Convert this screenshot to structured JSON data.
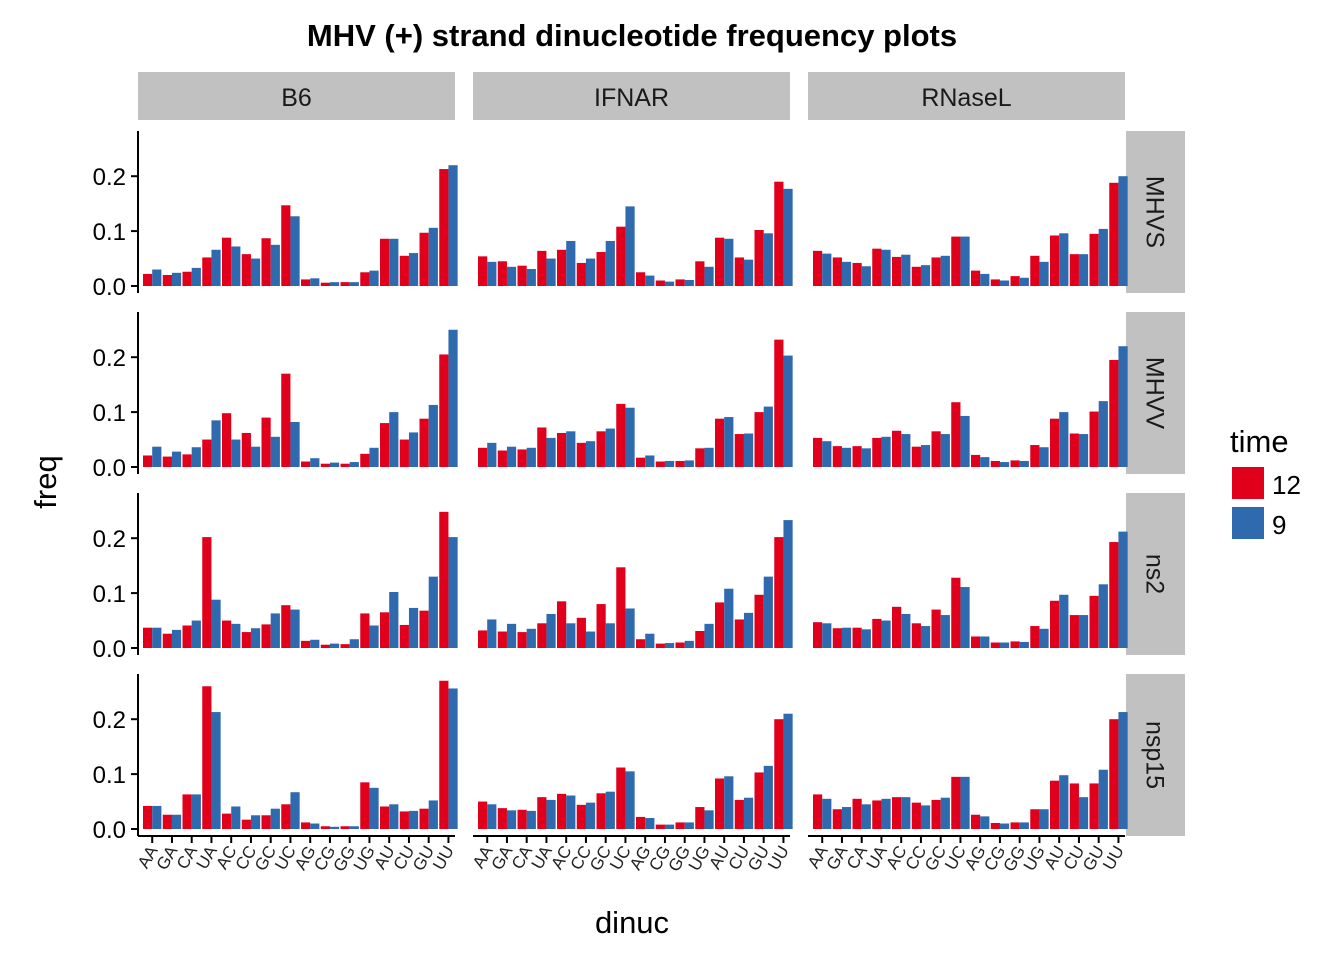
{
  "chart_data": {
    "type": "bar",
    "title": "MHV (+) strand dinucleotide frequency plots",
    "xlabel": "dinuc",
    "ylabel": "freq",
    "ylim": [
      0,
      0.285
    ],
    "yticks": [
      "0.0",
      "0.1",
      "0.2"
    ],
    "ytick_values": [
      0,
      0.1,
      0.2
    ],
    "grid": false,
    "legend_placement": "right",
    "legend": {
      "title": "time",
      "entries": [
        {
          "label": "12",
          "color": "#E0001B"
        },
        {
          "label": "9",
          "color": "#2F6AAE"
        }
      ]
    },
    "column_facets": [
      "B6",
      "IFNAR",
      "RNaseL"
    ],
    "row_facets": [
      "MHVS",
      "MHVV",
      "ns2",
      "nsp15"
    ],
    "categories": [
      "AA",
      "GA",
      "CA",
      "UA",
      "AC",
      "CC",
      "GC",
      "UC",
      "AG",
      "CG",
      "GG",
      "UG",
      "AU",
      "CU",
      "GU",
      "UU"
    ],
    "series_names": [
      "12",
      "9"
    ],
    "panels": [
      {
        "col": "B6",
        "row": "MHVS",
        "series": [
          {
            "name": "12",
            "values": [
              0.022,
              0.02,
              0.026,
              0.052,
              0.088,
              0.058,
              0.087,
              0.147,
              0.012,
              0.006,
              0.007,
              0.025,
              0.086,
              0.055,
              0.097,
              0.213
            ]
          },
          {
            "name": "9",
            "values": [
              0.03,
              0.024,
              0.033,
              0.066,
              0.072,
              0.05,
              0.075,
              0.127,
              0.014,
              0.007,
              0.007,
              0.028,
              0.086,
              0.06,
              0.106,
              0.22
            ]
          }
        ]
      },
      {
        "col": "IFNAR",
        "row": "MHVS",
        "series": [
          {
            "name": "12",
            "values": [
              0.054,
              0.045,
              0.037,
              0.064,
              0.066,
              0.042,
              0.062,
              0.108,
              0.025,
              0.01,
              0.012,
              0.045,
              0.088,
              0.052,
              0.102,
              0.19
            ]
          },
          {
            "name": "9",
            "values": [
              0.044,
              0.035,
              0.031,
              0.05,
              0.082,
              0.05,
              0.082,
              0.145,
              0.019,
              0.008,
              0.011,
              0.035,
              0.086,
              0.048,
              0.096,
              0.177
            ]
          }
        ]
      },
      {
        "col": "RNaseL",
        "row": "MHVS",
        "series": [
          {
            "name": "12",
            "values": [
              0.064,
              0.052,
              0.042,
              0.068,
              0.053,
              0.035,
              0.052,
              0.09,
              0.028,
              0.012,
              0.018,
              0.055,
              0.092,
              0.058,
              0.095,
              0.188
            ]
          },
          {
            "name": "9",
            "values": [
              0.059,
              0.044,
              0.036,
              0.066,
              0.057,
              0.038,
              0.055,
              0.09,
              0.022,
              0.01,
              0.015,
              0.044,
              0.096,
              0.058,
              0.104,
              0.2
            ]
          }
        ]
      },
      {
        "col": "B6",
        "row": "MHVV",
        "series": [
          {
            "name": "12",
            "values": [
              0.021,
              0.019,
              0.023,
              0.05,
              0.098,
              0.062,
              0.09,
              0.17,
              0.01,
              0.006,
              0.006,
              0.024,
              0.08,
              0.05,
              0.088,
              0.205
            ]
          },
          {
            "name": "9",
            "values": [
              0.037,
              0.028,
              0.036,
              0.085,
              0.05,
              0.037,
              0.055,
              0.082,
              0.016,
              0.008,
              0.009,
              0.035,
              0.1,
              0.063,
              0.113,
              0.25
            ]
          }
        ]
      },
      {
        "col": "IFNAR",
        "row": "MHVV",
        "series": [
          {
            "name": "12",
            "values": [
              0.035,
              0.03,
              0.032,
              0.072,
              0.062,
              0.044,
              0.065,
              0.115,
              0.017,
              0.01,
              0.011,
              0.034,
              0.088,
              0.06,
              0.1,
              0.232
            ]
          },
          {
            "name": "9",
            "values": [
              0.044,
              0.037,
              0.035,
              0.053,
              0.065,
              0.047,
              0.07,
              0.108,
              0.021,
              0.011,
              0.012,
              0.035,
              0.091,
              0.061,
              0.11,
              0.203
            ]
          }
        ]
      },
      {
        "col": "RNaseL",
        "row": "MHVV",
        "series": [
          {
            "name": "12",
            "values": [
              0.053,
              0.038,
              0.038,
              0.053,
              0.066,
              0.037,
              0.065,
              0.118,
              0.022,
              0.011,
              0.012,
              0.04,
              0.088,
              0.061,
              0.101,
              0.195
            ]
          },
          {
            "name": "9",
            "values": [
              0.047,
              0.035,
              0.034,
              0.055,
              0.06,
              0.04,
              0.06,
              0.093,
              0.018,
              0.009,
              0.011,
              0.036,
              0.1,
              0.06,
              0.12,
              0.22
            ]
          }
        ]
      },
      {
        "col": "B6",
        "row": "ns2",
        "series": [
          {
            "name": "12",
            "values": [
              0.037,
              0.026,
              0.041,
              0.202,
              0.05,
              0.029,
              0.043,
              0.078,
              0.013,
              0.006,
              0.007,
              0.063,
              0.065,
              0.042,
              0.068,
              0.248
            ]
          },
          {
            "name": "9",
            "values": [
              0.037,
              0.033,
              0.05,
              0.088,
              0.044,
              0.036,
              0.063,
              0.07,
              0.015,
              0.008,
              0.016,
              0.041,
              0.102,
              0.073,
              0.13,
              0.202
            ]
          }
        ]
      },
      {
        "col": "IFNAR",
        "row": "ns2",
        "series": [
          {
            "name": "12",
            "values": [
              0.032,
              0.03,
              0.029,
              0.045,
              0.085,
              0.055,
              0.08,
              0.147,
              0.016,
              0.008,
              0.01,
              0.031,
              0.083,
              0.052,
              0.097,
              0.202
            ]
          },
          {
            "name": "9",
            "values": [
              0.052,
              0.044,
              0.035,
              0.062,
              0.045,
              0.03,
              0.045,
              0.072,
              0.026,
              0.009,
              0.013,
              0.044,
              0.108,
              0.064,
              0.13,
              0.233
            ]
          }
        ]
      },
      {
        "col": "RNaseL",
        "row": "ns2",
        "series": [
          {
            "name": "12",
            "values": [
              0.047,
              0.036,
              0.037,
              0.053,
              0.075,
              0.045,
              0.07,
              0.128,
              0.021,
              0.01,
              0.012,
              0.04,
              0.086,
              0.06,
              0.095,
              0.193
            ]
          },
          {
            "name": "9",
            "values": [
              0.045,
              0.037,
              0.034,
              0.05,
              0.062,
              0.04,
              0.06,
              0.111,
              0.021,
              0.01,
              0.011,
              0.035,
              0.097,
              0.06,
              0.116,
              0.212
            ]
          }
        ]
      },
      {
        "col": "B6",
        "row": "nsp15",
        "series": [
          {
            "name": "12",
            "values": [
              0.042,
              0.026,
              0.063,
              0.26,
              0.028,
              0.017,
              0.025,
              0.045,
              0.012,
              0.005,
              0.005,
              0.085,
              0.041,
              0.032,
              0.037,
              0.27
            ]
          },
          {
            "name": "9",
            "values": [
              0.042,
              0.026,
              0.063,
              0.213,
              0.041,
              0.025,
              0.037,
              0.067,
              0.01,
              0.004,
              0.005,
              0.075,
              0.045,
              0.033,
              0.052,
              0.256
            ]
          }
        ]
      },
      {
        "col": "IFNAR",
        "row": "nsp15",
        "series": [
          {
            "name": "12",
            "values": [
              0.05,
              0.038,
              0.035,
              0.058,
              0.064,
              0.044,
              0.065,
              0.112,
              0.022,
              0.008,
              0.012,
              0.04,
              0.092,
              0.053,
              0.103,
              0.2
            ]
          },
          {
            "name": "9",
            "values": [
              0.045,
              0.034,
              0.033,
              0.053,
              0.061,
              0.048,
              0.068,
              0.105,
              0.02,
              0.008,
              0.012,
              0.034,
              0.096,
              0.057,
              0.115,
              0.21
            ]
          }
        ]
      },
      {
        "col": "RNaseL",
        "row": "nsp15",
        "series": [
          {
            "name": "12",
            "values": [
              0.063,
              0.036,
              0.055,
              0.052,
              0.058,
              0.048,
              0.053,
              0.095,
              0.026,
              0.011,
              0.012,
              0.036,
              0.088,
              0.083,
              0.083,
              0.2
            ]
          },
          {
            "name": "9",
            "values": [
              0.055,
              0.04,
              0.045,
              0.055,
              0.058,
              0.043,
              0.057,
              0.095,
              0.023,
              0.01,
              0.012,
              0.036,
              0.098,
              0.058,
              0.108,
              0.213
            ]
          }
        ]
      }
    ]
  }
}
